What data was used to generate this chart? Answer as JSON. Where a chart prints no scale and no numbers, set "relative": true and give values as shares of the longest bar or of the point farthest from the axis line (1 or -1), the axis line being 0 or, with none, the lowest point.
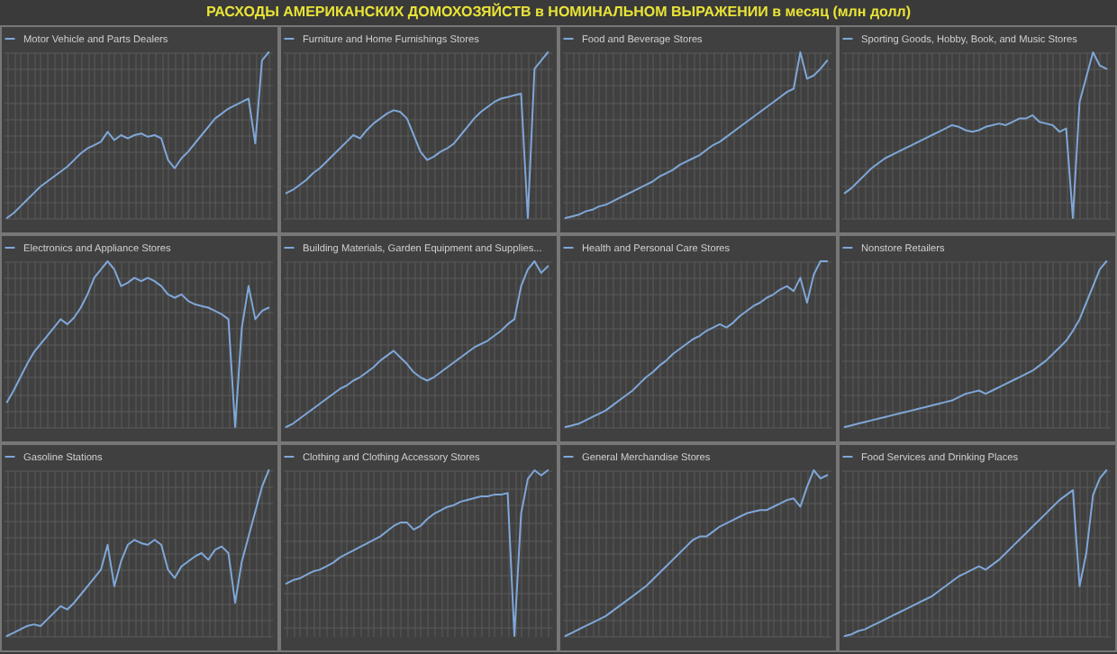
{
  "chart_data": [
    {
      "type": "line",
      "title": "РАСХОДЫ АМЕРИКАНСКИХ ДОМОХОЗЯЙСТВ в НОМИНАЛЬНОМ ВЫРАЖЕНИИ в месяц (млн долл)",
      "relative": true,
      "grid": true,
      "legend": "top",
      "categories": [
        null,
        null,
        null,
        null,
        null,
        null,
        null,
        null,
        null,
        null,
        null,
        null,
        null,
        null,
        null,
        null,
        null,
        null,
        null,
        null,
        null,
        null,
        null,
        null,
        null,
        null,
        null,
        null,
        null,
        null,
        null,
        null,
        null,
        null,
        null,
        null,
        null,
        null,
        null,
        null
      ],
      "series": [
        {
          "name": "Motor Vehicle and Parts Dealers",
          "color": "#7fa7d8",
          "values": [
            0,
            0.03,
            0.07,
            0.11,
            0.15,
            0.19,
            0.22,
            0.25,
            0.28,
            0.31,
            0.35,
            0.39,
            0.42,
            0.44,
            0.46,
            0.52,
            0.47,
            0.5,
            0.48,
            0.5,
            0.51,
            0.49,
            0.5,
            0.48,
            0.35,
            0.3,
            0.36,
            0.4,
            0.45,
            0.5,
            0.55,
            0.6,
            0.63,
            0.66,
            0.68,
            0.7,
            0.72,
            0.45,
            0.95,
            1.0
          ]
        }
      ]
    },
    {
      "type": "line",
      "relative": true,
      "grid": true,
      "legend": "top",
      "categories": [
        null,
        null,
        null,
        null,
        null,
        null,
        null,
        null,
        null,
        null,
        null,
        null,
        null,
        null,
        null,
        null,
        null,
        null,
        null,
        null,
        null,
        null,
        null,
        null,
        null,
        null,
        null,
        null,
        null,
        null,
        null,
        null,
        null,
        null,
        null,
        null,
        null,
        null,
        null,
        null
      ],
      "series": [
        {
          "name": "Furniture and Home Furnishings Stores",
          "color": "#7fa7d8",
          "values": [
            0.15,
            0.17,
            0.2,
            0.23,
            0.27,
            0.3,
            0.34,
            0.38,
            0.42,
            0.46,
            0.5,
            0.48,
            0.53,
            0.57,
            0.6,
            0.63,
            0.65,
            0.64,
            0.6,
            0.5,
            0.4,
            0.35,
            0.37,
            0.4,
            0.42,
            0.45,
            0.5,
            0.55,
            0.6,
            0.64,
            0.67,
            0.7,
            0.72,
            0.73,
            0.74,
            0.75,
            0,
            0.9,
            0.95,
            1.0
          ]
        }
      ]
    },
    {
      "type": "line",
      "relative": true,
      "grid": true,
      "legend": "top",
      "categories": [
        null,
        null,
        null,
        null,
        null,
        null,
        null,
        null,
        null,
        null,
        null,
        null,
        null,
        null,
        null,
        null,
        null,
        null,
        null,
        null,
        null,
        null,
        null,
        null,
        null,
        null,
        null,
        null,
        null,
        null,
        null,
        null,
        null,
        null,
        null,
        null,
        null,
        null,
        null,
        null
      ],
      "series": [
        {
          "name": "Food and Beverage Stores",
          "color": "#7fa7d8",
          "values": [
            0,
            0.01,
            0.02,
            0.04,
            0.05,
            0.07,
            0.08,
            0.1,
            0.12,
            0.14,
            0.16,
            0.18,
            0.2,
            0.22,
            0.25,
            0.27,
            0.29,
            0.32,
            0.34,
            0.36,
            0.38,
            0.41,
            0.44,
            0.46,
            0.49,
            0.52,
            0.55,
            0.58,
            0.61,
            0.64,
            0.67,
            0.7,
            0.73,
            0.76,
            0.78,
            1.0,
            0.84,
            0.86,
            0.9,
            0.95
          ]
        }
      ]
    },
    {
      "type": "line",
      "relative": true,
      "grid": true,
      "legend": "top",
      "categories": [
        null,
        null,
        null,
        null,
        null,
        null,
        null,
        null,
        null,
        null,
        null,
        null,
        null,
        null,
        null,
        null,
        null,
        null,
        null,
        null,
        null,
        null,
        null,
        null,
        null,
        null,
        null,
        null,
        null,
        null,
        null,
        null,
        null,
        null,
        null,
        null,
        null,
        null,
        null,
        null
      ],
      "series": [
        {
          "name": "Sporting Goods, Hobby, Book, and Music Stores",
          "color": "#7fa7d8",
          "values": [
            0.15,
            0.18,
            0.22,
            0.26,
            0.3,
            0.33,
            0.36,
            0.38,
            0.4,
            0.42,
            0.44,
            0.46,
            0.48,
            0.5,
            0.52,
            0.54,
            0.56,
            0.55,
            0.53,
            0.52,
            0.53,
            0.55,
            0.56,
            0.57,
            0.56,
            0.58,
            0.6,
            0.6,
            0.62,
            0.58,
            0.57,
            0.56,
            0.52,
            0.54,
            0,
            0.7,
            0.85,
            1.0,
            0.92,
            0.9
          ]
        }
      ]
    },
    {
      "type": "line",
      "relative": true,
      "grid": true,
      "legend": "top",
      "categories": [
        null,
        null,
        null,
        null,
        null,
        null,
        null,
        null,
        null,
        null,
        null,
        null,
        null,
        null,
        null,
        null,
        null,
        null,
        null,
        null,
        null,
        null,
        null,
        null,
        null,
        null,
        null,
        null,
        null,
        null,
        null,
        null,
        null,
        null,
        null,
        null,
        null,
        null,
        null,
        null
      ],
      "series": [
        {
          "name": "Electronics and Appliance Stores",
          "color": "#7fa7d8",
          "values": [
            0.15,
            0.22,
            0.3,
            0.38,
            0.45,
            0.5,
            0.55,
            0.6,
            0.65,
            0.62,
            0.66,
            0.72,
            0.8,
            0.9,
            0.95,
            1.0,
            0.95,
            0.85,
            0.87,
            0.9,
            0.88,
            0.9,
            0.88,
            0.85,
            0.8,
            0.78,
            0.8,
            0.76,
            0.74,
            0.73,
            0.72,
            0.7,
            0.68,
            0.65,
            0,
            0.6,
            0.85,
            0.65,
            0.7,
            0.72
          ]
        }
      ]
    },
    {
      "type": "line",
      "relative": true,
      "grid": true,
      "legend": "top",
      "categories": [
        null,
        null,
        null,
        null,
        null,
        null,
        null,
        null,
        null,
        null,
        null,
        null,
        null,
        null,
        null,
        null,
        null,
        null,
        null,
        null,
        null,
        null,
        null,
        null,
        null,
        null,
        null,
        null,
        null,
        null,
        null,
        null,
        null,
        null,
        null,
        null,
        null,
        null,
        null,
        null
      ],
      "series": [
        {
          "name": "Building Materials, Garden Equipment and Supplies...",
          "color": "#7fa7d8",
          "values": [
            0,
            0.02,
            0.05,
            0.08,
            0.11,
            0.14,
            0.17,
            0.2,
            0.23,
            0.25,
            0.28,
            0.3,
            0.33,
            0.36,
            0.4,
            0.43,
            0.46,
            0.42,
            0.38,
            0.33,
            0.3,
            0.28,
            0.3,
            0.33,
            0.36,
            0.39,
            0.42,
            0.45,
            0.48,
            0.5,
            0.52,
            0.55,
            0.58,
            0.62,
            0.65,
            0.85,
            0.95,
            1.0,
            0.93,
            0.97
          ]
        }
      ]
    },
    {
      "type": "line",
      "relative": true,
      "grid": true,
      "legend": "top",
      "categories": [
        null,
        null,
        null,
        null,
        null,
        null,
        null,
        null,
        null,
        null,
        null,
        null,
        null,
        null,
        null,
        null,
        null,
        null,
        null,
        null,
        null,
        null,
        null,
        null,
        null,
        null,
        null,
        null,
        null,
        null,
        null,
        null,
        null,
        null,
        null,
        null,
        null,
        null,
        null,
        null
      ],
      "series": [
        {
          "name": "Health and Personal Care Stores",
          "color": "#7fa7d8",
          "values": [
            0,
            0.01,
            0.02,
            0.04,
            0.06,
            0.08,
            0.1,
            0.13,
            0.16,
            0.19,
            0.22,
            0.26,
            0.3,
            0.33,
            0.37,
            0.4,
            0.44,
            0.47,
            0.5,
            0.53,
            0.55,
            0.58,
            0.6,
            0.62,
            0.6,
            0.63,
            0.67,
            0.7,
            0.73,
            0.75,
            0.78,
            0.8,
            0.83,
            0.85,
            0.82,
            0.9,
            0.75,
            0.92,
            1.0,
            1.0
          ]
        }
      ]
    },
    {
      "type": "line",
      "relative": true,
      "grid": true,
      "legend": "top",
      "categories": [
        null,
        null,
        null,
        null,
        null,
        null,
        null,
        null,
        null,
        null,
        null,
        null,
        null,
        null,
        null,
        null,
        null,
        null,
        null,
        null,
        null,
        null,
        null,
        null,
        null,
        null,
        null,
        null,
        null,
        null,
        null,
        null,
        null,
        null,
        null,
        null,
        null,
        null,
        null,
        null
      ],
      "series": [
        {
          "name": "Nonstore Retailers",
          "color": "#7fa7d8",
          "values": [
            0,
            0.01,
            0.02,
            0.03,
            0.04,
            0.05,
            0.06,
            0.07,
            0.08,
            0.09,
            0.1,
            0.11,
            0.12,
            0.13,
            0.14,
            0.15,
            0.16,
            0.18,
            0.2,
            0.21,
            0.22,
            0.2,
            0.22,
            0.24,
            0.26,
            0.28,
            0.3,
            0.32,
            0.34,
            0.37,
            0.4,
            0.44,
            0.48,
            0.52,
            0.58,
            0.65,
            0.75,
            0.85,
            0.95,
            1.0
          ]
        }
      ]
    },
    {
      "type": "line",
      "relative": true,
      "grid": true,
      "legend": "top",
      "categories": [
        null,
        null,
        null,
        null,
        null,
        null,
        null,
        null,
        null,
        null,
        null,
        null,
        null,
        null,
        null,
        null,
        null,
        null,
        null,
        null,
        null,
        null,
        null,
        null,
        null,
        null,
        null,
        null,
        null,
        null,
        null,
        null,
        null,
        null,
        null,
        null,
        null,
        null,
        null,
        null
      ],
      "series": [
        {
          "name": "Gasoline Stations",
          "color": "#7fa7d8",
          "values": [
            0,
            0.02,
            0.04,
            0.06,
            0.07,
            0.06,
            0.1,
            0.14,
            0.18,
            0.16,
            0.2,
            0.25,
            0.3,
            0.35,
            0.4,
            0.55,
            0.3,
            0.45,
            0.55,
            0.58,
            0.56,
            0.55,
            0.58,
            0.55,
            0.4,
            0.35,
            0.42,
            0.45,
            0.48,
            0.5,
            0.46,
            0.52,
            0.54,
            0.5,
            0.2,
            0.45,
            0.6,
            0.75,
            0.9,
            1.0
          ]
        }
      ]
    },
    {
      "type": "line",
      "relative": true,
      "grid": true,
      "legend": "top",
      "categories": [
        null,
        null,
        null,
        null,
        null,
        null,
        null,
        null,
        null,
        null,
        null,
        null,
        null,
        null,
        null,
        null,
        null,
        null,
        null,
        null,
        null,
        null,
        null,
        null,
        null,
        null,
        null,
        null,
        null,
        null,
        null,
        null,
        null,
        null,
        null,
        null,
        null,
        null,
        null,
        null
      ],
      "series": [
        {
          "name": "Clothing and Clothing Accessory Stores",
          "color": "#7fa7d8",
          "values": [
            0.35,
            0.37,
            0.38,
            0.4,
            0.42,
            0.43,
            0.45,
            0.47,
            0.5,
            0.52,
            0.54,
            0.56,
            0.58,
            0.6,
            0.62,
            0.65,
            0.68,
            0.7,
            0.7,
            0.66,
            0.68,
            0.72,
            0.75,
            0.77,
            0.79,
            0.8,
            0.82,
            0.83,
            0.84,
            0.85,
            0.85,
            0.86,
            0.86,
            0.87,
            0.05,
            0.75,
            0.95,
            1.0,
            0.97,
            1.0
          ]
        }
      ]
    },
    {
      "type": "line",
      "relative": true,
      "grid": true,
      "legend": "top",
      "categories": [
        null,
        null,
        null,
        null,
        null,
        null,
        null,
        null,
        null,
        null,
        null,
        null,
        null,
        null,
        null,
        null,
        null,
        null,
        null,
        null,
        null,
        null,
        null,
        null,
        null,
        null,
        null,
        null,
        null,
        null,
        null,
        null,
        null,
        null,
        null,
        null,
        null,
        null,
        null,
        null
      ],
      "series": [
        {
          "name": "General Merchandise Stores",
          "color": "#7fa7d8",
          "values": [
            0,
            0.02,
            0.04,
            0.06,
            0.08,
            0.1,
            0.12,
            0.15,
            0.18,
            0.21,
            0.24,
            0.27,
            0.3,
            0.34,
            0.38,
            0.42,
            0.46,
            0.5,
            0.54,
            0.58,
            0.6,
            0.6,
            0.63,
            0.66,
            0.68,
            0.7,
            0.72,
            0.74,
            0.75,
            0.76,
            0.76,
            0.78,
            0.8,
            0.82,
            0.83,
            0.78,
            0.9,
            1.0,
            0.95,
            0.97
          ]
        }
      ]
    },
    {
      "type": "line",
      "relative": true,
      "grid": true,
      "legend": "top",
      "categories": [
        null,
        null,
        null,
        null,
        null,
        null,
        null,
        null,
        null,
        null,
        null,
        null,
        null,
        null,
        null,
        null,
        null,
        null,
        null,
        null,
        null,
        null,
        null,
        null,
        null,
        null,
        null,
        null,
        null,
        null,
        null,
        null,
        null,
        null,
        null,
        null,
        null,
        null,
        null,
        null
      ],
      "series": [
        {
          "name": "Food Services and Drinking Places",
          "color": "#7fa7d8",
          "values": [
            0,
            0.01,
            0.03,
            0.04,
            0.06,
            0.08,
            0.1,
            0.12,
            0.14,
            0.16,
            0.18,
            0.2,
            0.22,
            0.24,
            0.27,
            0.3,
            0.33,
            0.36,
            0.38,
            0.4,
            0.42,
            0.4,
            0.43,
            0.46,
            0.5,
            0.54,
            0.58,
            0.62,
            0.66,
            0.7,
            0.74,
            0.78,
            0.82,
            0.85,
            0.88,
            0.3,
            0.5,
            0.85,
            0.95,
            1.0
          ]
        }
      ]
    }
  ]
}
